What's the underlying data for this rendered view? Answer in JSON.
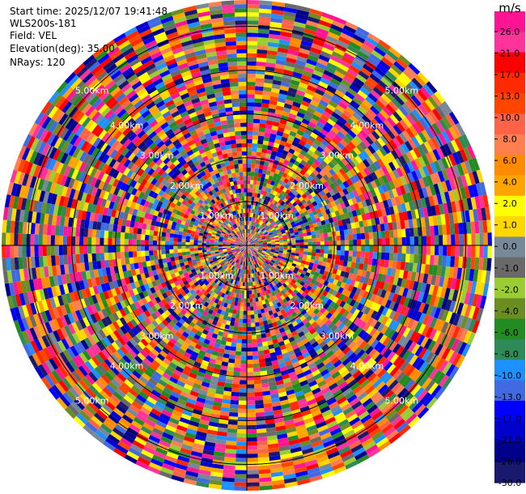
{
  "info": {
    "start_time": "Start time: 2025/12/07 19:41:48",
    "instrument": "WLS200s-181",
    "field": "Field: VEL",
    "elevation": "Elevation(deg): 35.00",
    "nrays": "NRays: 120"
  },
  "colorbar": {
    "unit": "m/s",
    "labels": [
      "26.0",
      "21.0",
      "17.0",
      "13.0",
      "10.0",
      "8.0",
      "6.0",
      "4.0",
      "2.0",
      "1.0",
      "0.0",
      "-1.0",
      "-2.0",
      "-4.0",
      "-6.0",
      "-8.0",
      "-10.0",
      "-13.0",
      "-17.0",
      "-21.0",
      "-26.0",
      "-30.0"
    ],
    "colors": [
      "#ff1493",
      "#ff3399",
      "#ff0000",
      "#ff2a00",
      "#ff4500",
      "#ff6347",
      "#ff7f50",
      "#ff8c00",
      "#ffa500",
      "#ffff00",
      "#ffd700",
      "#778899",
      "#696969",
      "#9acd32",
      "#6b8e23",
      "#228b22",
      "#2e8b57",
      "#1e90ff",
      "#4169e1",
      "#0000ff",
      "#0000cd",
      "#00008b",
      "#191970"
    ]
  },
  "chart_data": {
    "type": "heatmap",
    "projection": "polar PPI",
    "field": "VEL",
    "units": "m/s",
    "elevation_deg": 35.0,
    "n_rays": 120,
    "value_range": [
      -30.0,
      26.0
    ],
    "range_rings_km": [
      1.0,
      2.0,
      3.0,
      4.0,
      5.0
    ],
    "ring_labels": [
      "1.00km",
      "2.00km",
      "3.00km",
      "4.00km",
      "5.00km"
    ],
    "max_range_km": 5.6,
    "gate_count": 60,
    "grid": true
  }
}
